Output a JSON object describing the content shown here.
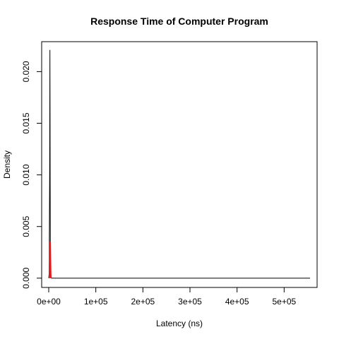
{
  "chart_data": {
    "type": "line",
    "title": "Response Time of Computer Program",
    "xlabel": "Latency (ns)",
    "ylabel": "Density",
    "xlim": [
      -15000,
      570000
    ],
    "ylim": [
      -0.0009,
      0.0229
    ],
    "grid": false,
    "legend": "none",
    "x_ticks": [
      0,
      100000,
      200000,
      300000,
      400000,
      500000
    ],
    "x_tick_labels": [
      "0e+00",
      "1e+05",
      "2e+05",
      "3e+05",
      "4e+05",
      "5e+05"
    ],
    "y_ticks": [
      0.0,
      0.005,
      0.01,
      0.015,
      0.02
    ],
    "y_tick_labels": [
      "0.000",
      "0.005",
      "0.010",
      "0.015",
      "0.020"
    ],
    "series": [
      {
        "color": "#000000",
        "x": [
          0,
          1000,
          2000,
          2500,
          3000,
          3500,
          4000,
          6000,
          100000,
          300000,
          555000
        ],
        "y": [
          0,
          0.0005,
          0.0102,
          0.0221,
          0.0101,
          0.0005,
          0.0001,
          0,
          0,
          0,
          0
        ]
      },
      {
        "color": "#e41a1c",
        "x": [
          1500,
          2000,
          2500,
          3000,
          3500,
          4000,
          4500
        ],
        "y": [
          0,
          0.0005,
          0.002,
          0.0035,
          0.002,
          0.0005,
          0
        ]
      }
    ]
  }
}
